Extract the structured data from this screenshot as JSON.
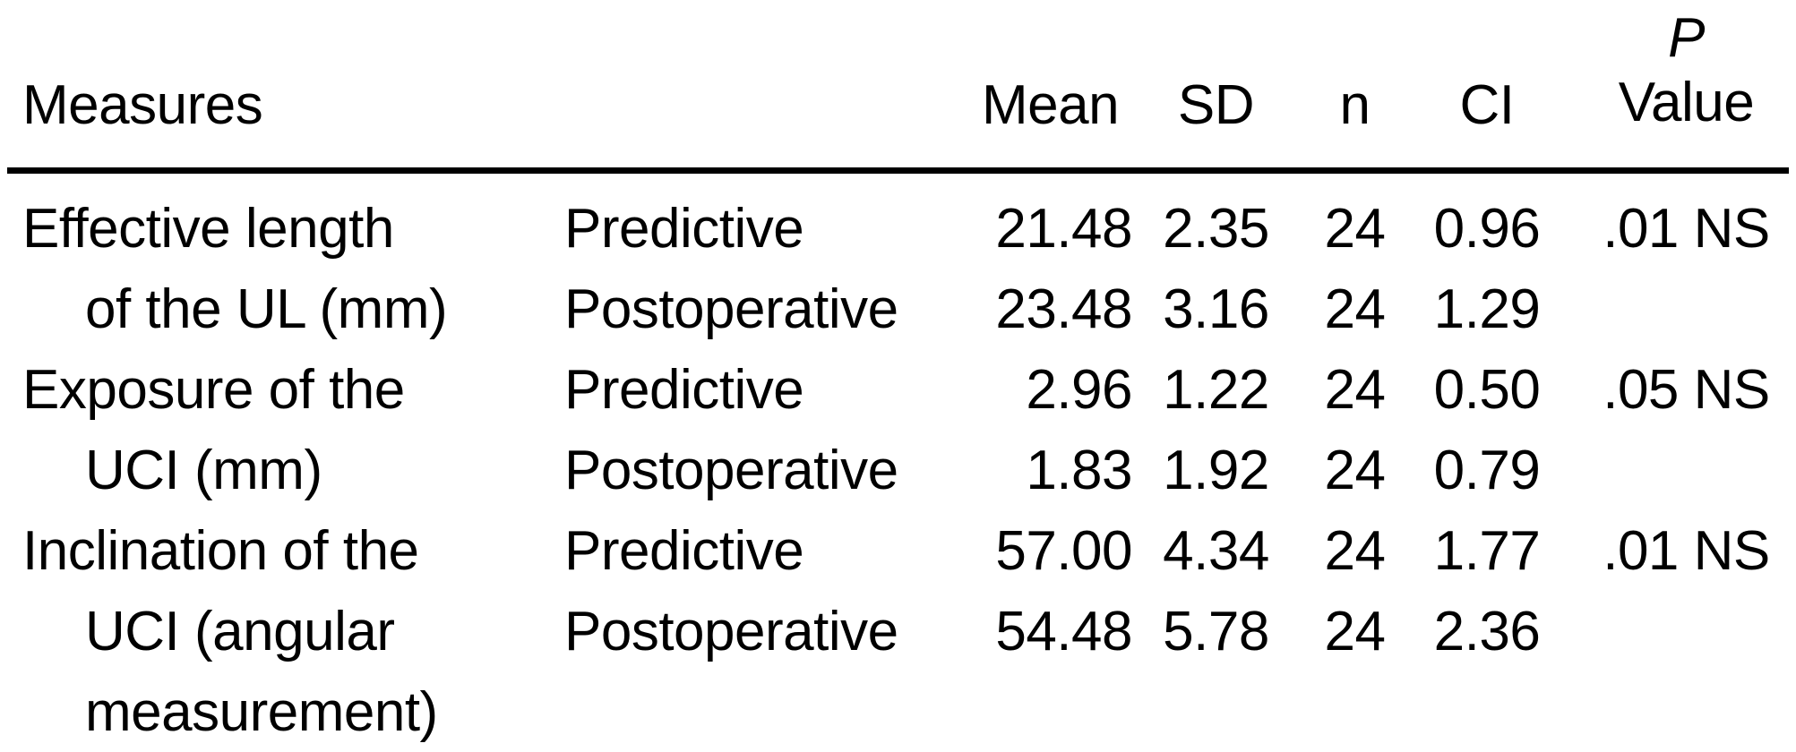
{
  "page": {
    "background_color": "#ffffff",
    "text_color": "#000000",
    "rule_color": "#000000"
  },
  "table": {
    "headers": {
      "measures": "Measures",
      "mean": "Mean",
      "sd": "SD",
      "n": "n",
      "ci": "CI",
      "p_line1": "P",
      "p_line2": "Value"
    },
    "rows": [
      {
        "measure": "Effective length of the UL (mm)",
        "measure_lines": [
          "Effective length",
          "of the UL (mm)"
        ],
        "series": [
          {
            "condition": "Predictive",
            "mean": "21.48",
            "sd": "2.35",
            "n": "24",
            "ci": "0.96",
            "p_value": ".01 NS"
          },
          {
            "condition": "Postoperative",
            "mean": "23.48",
            "sd": "3.16",
            "n": "24",
            "ci": "1.29",
            "p_value": ""
          }
        ]
      },
      {
        "measure": "Exposure of the UCI (mm)",
        "measure_lines": [
          "Exposure of the",
          "UCI (mm)"
        ],
        "series": [
          {
            "condition": "Predictive",
            "mean": "2.96",
            "sd": "1.22",
            "n": "24",
            "ci": "0.50",
            "p_value": ".05 NS"
          },
          {
            "condition": "Postoperative",
            "mean": "1.83",
            "sd": "1.92",
            "n": "24",
            "ci": "0.79",
            "p_value": ""
          }
        ]
      },
      {
        "measure": "Inclination of the UCI (angular measurement)",
        "measure_lines": [
          "Inclination of the",
          "UCI (angular",
          "measurement)"
        ],
        "series": [
          {
            "condition": "Predictive",
            "mean": "57.00",
            "sd": "4.34",
            "n": "24",
            "ci": "1.77",
            "p_value": ".01 NS"
          },
          {
            "condition": "Postoperative",
            "mean": "54.48",
            "sd": "5.78",
            "n": "24",
            "ci": "2.36",
            "p_value": ""
          }
        ]
      }
    ]
  }
}
